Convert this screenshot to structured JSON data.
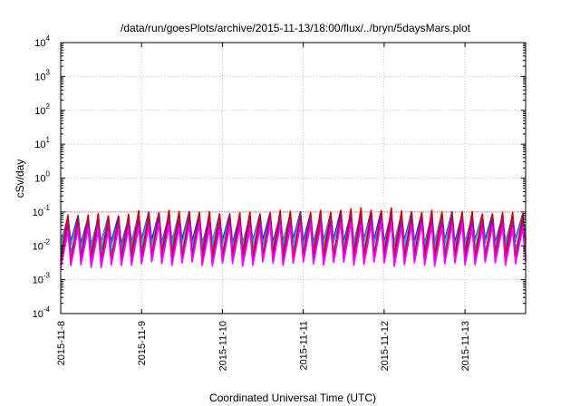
{
  "chart_data": {
    "type": "line",
    "title": "/data/run/goesPlots/archive/2015-11-13/18:00/flux/../bryn/5daysMars.plot",
    "xlabel": "Coordinated Universal Time (UTC)",
    "ylabel": "cSv/day",
    "y_scale": "log",
    "ylim": [
      0.0001,
      10000
    ],
    "xlim": [
      "2015-11-08 00:00",
      "2015-11-13 18:00"
    ],
    "grid": true,
    "legend": "none",
    "y_ticks": [
      {
        "mant": "10",
        "exp": "-4",
        "value": 0.0001
      },
      {
        "mant": "10",
        "exp": "-3",
        "value": 0.001
      },
      {
        "mant": "10",
        "exp": "-2",
        "value": 0.01
      },
      {
        "mant": "10",
        "exp": "-1",
        "value": 0.1
      },
      {
        "mant": "10",
        "exp": "0",
        "value": 1
      },
      {
        "mant": "10",
        "exp": "1",
        "value": 10
      },
      {
        "mant": "10",
        "exp": "2",
        "value": 100
      },
      {
        "mant": "10",
        "exp": "3",
        "value": 1000
      },
      {
        "mant": "10",
        "exp": "4",
        "value": 10000
      }
    ],
    "x_ticks": [
      "2015-11-8",
      "2015-11-9",
      "2015-11-10",
      "2015-11-11",
      "2015-11-12",
      "2015-11-13"
    ],
    "reference_line": {
      "value": 0.1,
      "color": "#ff0000"
    },
    "cycle_hours": 3,
    "series": [
      {
        "color": "#2222dd",
        "peak": [
          0.07,
          0.09,
          0.08,
          0.09,
          0.1,
          0.09,
          0.08
        ],
        "trough": [
          0.012,
          0.014,
          0.013,
          0.014,
          0.014,
          0.013,
          0.014
        ]
      },
      {
        "color": "#4a90e0",
        "peak": [
          0.06,
          0.08,
          0.07,
          0.08,
          0.08,
          0.08,
          0.07
        ],
        "trough": [
          0.01,
          0.011,
          0.011,
          0.011,
          0.012,
          0.011,
          0.012
        ]
      },
      {
        "color": "#00b8b8",
        "peak": [
          0.04,
          0.05,
          0.045,
          0.05,
          0.05,
          0.05,
          0.045
        ],
        "trough": [
          0.007,
          0.008,
          0.008,
          0.008,
          0.008,
          0.008,
          0.008
        ]
      },
      {
        "color": "#cc0000",
        "peak": [
          0.08,
          0.1,
          0.09,
          0.1,
          0.12,
          0.1,
          0.09
        ],
        "trough": [
          0.004,
          0.005,
          0.005,
          0.005,
          0.005,
          0.005,
          0.005
        ]
      },
      {
        "color": "#b000b0",
        "peak": [
          0.05,
          0.06,
          0.055,
          0.06,
          0.07,
          0.06,
          0.055
        ],
        "trough": [
          0.003,
          0.0035,
          0.0035,
          0.0035,
          0.0035,
          0.0035,
          0.0035
        ]
      },
      {
        "color": "#ff00ff",
        "peak": [
          0.03,
          0.04,
          0.035,
          0.04,
          0.045,
          0.04,
          0.035
        ],
        "trough": [
          0.0025,
          0.003,
          0.0028,
          0.003,
          0.003,
          0.0028,
          0.003
        ]
      }
    ]
  }
}
